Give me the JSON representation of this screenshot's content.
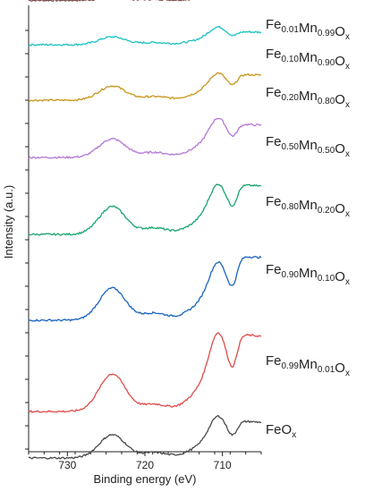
{
  "chart_data": {
    "type": "line",
    "xlabel": "Binding energy (eV)",
    "ylabel": "Intensity (a.u.)",
    "xlim": [
      735,
      705
    ],
    "x_reversed": true,
    "x_ticks": [
      730,
      720,
      710
    ],
    "grid": false,
    "y_tick_labels_shown": false,
    "legend_placement": "labels at right end of each curve",
    "curve_stacking": "vertically offset spectra",
    "series": [
      {
        "name": "Fe0.01Mn0.99Ox",
        "parts": [
          [
            "Fe",
            "0.01"
          ],
          [
            "Mn",
            "0.99"
          ],
          [
            "O",
            "x"
          ]
        ],
        "color": "#7a4a4a",
        "offset": 9.0,
        "peak_a": 0.07,
        "peak_b": 0.12,
        "valley": 0.03,
        "end": -0.05,
        "start": 0.04
      },
      {
        "name": "Fe0.10Mn0.90Ox",
        "parts": [
          [
            "Fe",
            "0.10"
          ],
          [
            "Mn",
            "0.90"
          ],
          [
            "O",
            "x"
          ]
        ],
        "color": "#1cc2c2",
        "offset": 8.0,
        "peak_a": 0.22,
        "peak_b": 0.36,
        "valley": 0.06,
        "end": -0.35,
        "start": 0.1
      },
      {
        "name": "Fe0.20Mn0.80Ox",
        "parts": [
          [
            "Fe",
            "0.20"
          ],
          [
            "Mn",
            "0.80"
          ],
          [
            "O",
            "x"
          ]
        ],
        "color": "#c8961b",
        "offset": 6.8,
        "peak_a": 0.4,
        "peak_b": 0.55,
        "valley": 0.1,
        "end": -0.7,
        "start": 0.1
      },
      {
        "name": "Fe0.50Mn0.50Ox",
        "parts": [
          [
            "Fe",
            "0.50"
          ],
          [
            "Mn",
            "0.50"
          ],
          [
            "O",
            "x"
          ]
        ],
        "color": "#b477d6",
        "offset": 5.4,
        "peak_a": 0.52,
        "peak_b": 0.8,
        "valley": 0.14,
        "end": -0.9,
        "start": 0.1
      },
      {
        "name": "Fe0.80Mn0.20Ox",
        "parts": [
          [
            "Fe",
            "0.80"
          ],
          [
            "Mn",
            "0.20"
          ],
          [
            "O",
            "x"
          ]
        ],
        "color": "#18a56f",
        "offset": 3.7,
        "peak_a": 0.78,
        "peak_b": 1.02,
        "valley": 0.18,
        "end": -1.35,
        "start": 0.1
      },
      {
        "name": "Fe0.90Mn0.10Ox",
        "parts": [
          [
            "Fe",
            "0.90"
          ],
          [
            "Mn",
            "0.10"
          ],
          [
            "O",
            "x"
          ]
        ],
        "color": "#1b63c0",
        "offset": 1.7,
        "peak_a": 0.9,
        "peak_b": 1.18,
        "valley": 0.2,
        "end": -1.75,
        "start": 0.1
      },
      {
        "name": "Fe0.99Mn0.01Ox",
        "parts": [
          [
            "Fe",
            "0.99"
          ],
          [
            "Mn",
            "0.01"
          ],
          [
            "O",
            "x"
          ]
        ],
        "color": "#e24a4a",
        "offset": -0.5,
        "peak_a": 1.05,
        "peak_b": 1.6,
        "valley": 0.2,
        "end": -2.1,
        "start": 0.1
      },
      {
        "name": "FeOx",
        "parts": [
          [
            "Fe",
            ""
          ],
          [
            "O",
            "x"
          ]
        ],
        "color": "#4a4a4a",
        "offset": -2.9,
        "peak_a": 0.65,
        "peak_b": 0.85,
        "valley": 0.15,
        "end": -1.0,
        "start": 0.1
      }
    ]
  }
}
